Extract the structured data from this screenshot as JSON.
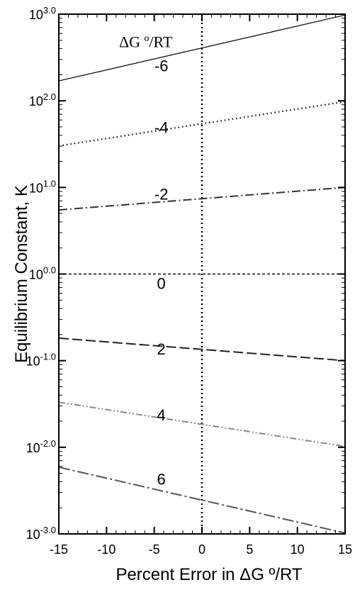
{
  "chart_data": {
    "type": "line",
    "xlabel": "Percent Error in ΔG º/RT",
    "ylabel": "Equilibrium Constant, K",
    "xlim": [
      -15,
      15
    ],
    "ylim_log10": [
      -3.0,
      3.0
    ],
    "yscale": "log",
    "x_ticks": [
      -15,
      -10,
      -5,
      0,
      5,
      10,
      15
    ],
    "y_ticks": [
      {
        "exp": 3,
        "base": "10",
        "power": "3.0"
      },
      {
        "exp": 2,
        "base": "10",
        "power": "2.0"
      },
      {
        "exp": 1,
        "base": "10",
        "power": "1.0"
      },
      {
        "exp": 0,
        "base": "10",
        "power": "0.0"
      },
      {
        "exp": -1,
        "base": "10",
        "power": "-1.0"
      },
      {
        "exp": -2,
        "base": "10",
        "power": "-2.0"
      },
      {
        "exp": -3,
        "base": "10",
        "power": "-3.0"
      }
    ],
    "legend_title": "ΔG º/RT",
    "vertical_line_x": 0,
    "series": [
      {
        "name": "-6",
        "color": "#000000",
        "dash": "none",
        "x": [
          -15,
          15
        ],
        "log10_y": [
          2.23,
          2.99
        ]
      },
      {
        "name": "-4",
        "color": "#000000",
        "dash": "1.5,4",
        "x": [
          -15,
          15
        ],
        "log10_y": [
          1.48,
          1.99
        ]
      },
      {
        "name": "-2",
        "color": "#333333",
        "dash": "12,4,2,4",
        "x": [
          -15,
          15
        ],
        "log10_y": [
          0.74,
          1.0
        ]
      },
      {
        "name": "0",
        "color": "#444444",
        "dash": "4,3",
        "x": [
          -15,
          15
        ],
        "log10_y": [
          0.0,
          0.0
        ]
      },
      {
        "name": "2",
        "color": "#222222",
        "dash": "14,5",
        "x": [
          -15,
          15
        ],
        "log10_y": [
          -0.74,
          -1.0
        ]
      },
      {
        "name": "4",
        "color": "#888888",
        "dash": "9,3,2,3,2,3",
        "x": [
          -15,
          15
        ],
        "log10_y": [
          -1.48,
          -1.99
        ]
      },
      {
        "name": "6",
        "color": "#555555",
        "dash": "16,4,3,4",
        "x": [
          -15,
          15
        ],
        "log10_y": [
          -2.23,
          -2.99
        ]
      }
    ],
    "series_labels": [
      {
        "text": "-6",
        "x": -5.0,
        "log10_y": 2.34
      },
      {
        "text": "-4",
        "x": -5.0,
        "log10_y": 1.63
      },
      {
        "text": "-2",
        "x": -5.0,
        "log10_y": 0.86
      },
      {
        "text": "0",
        "x": -5.0,
        "log10_y": -0.17
      },
      {
        "text": "2",
        "x": -5.0,
        "log10_y": -0.93
      },
      {
        "text": "4",
        "x": -5.0,
        "log10_y": -1.69
      },
      {
        "text": "6",
        "x": -5.0,
        "log10_y": -2.43
      }
    ]
  }
}
